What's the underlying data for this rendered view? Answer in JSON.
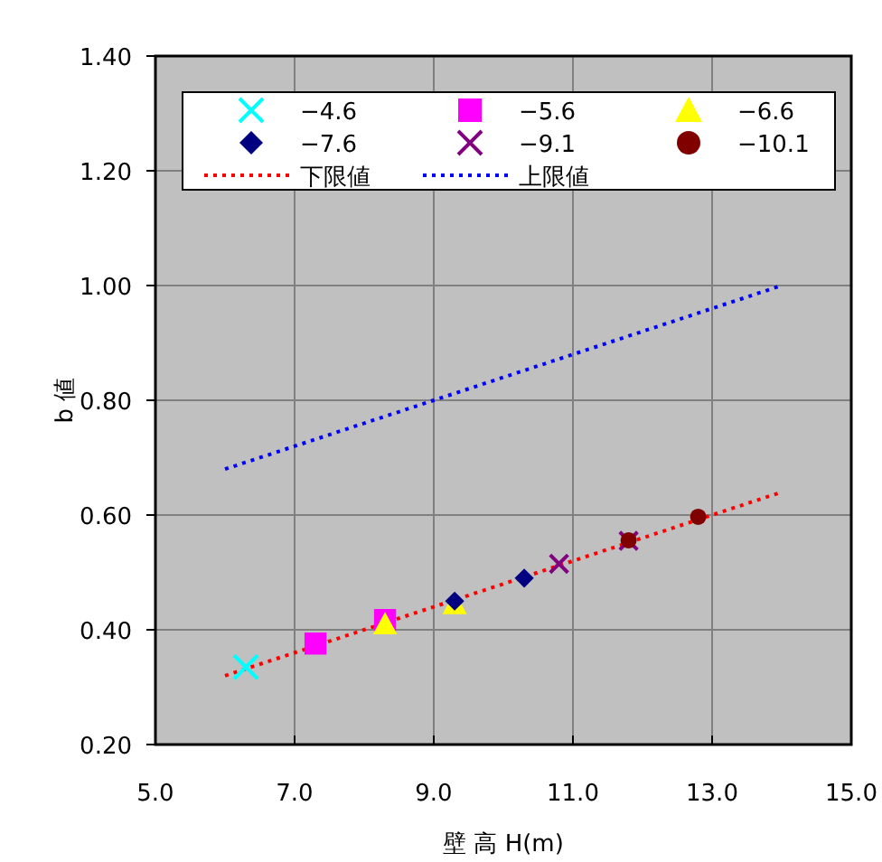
{
  "chart_data": {
    "type": "scatter",
    "xlabel": "壁 高 H(m)",
    "ylabel": "b 値",
    "xlim": [
      5,
      15
    ],
    "ylim": [
      0.2,
      1.4
    ],
    "xticks": [
      {
        "value": 5,
        "label": "5.0"
      },
      {
        "value": 7,
        "label": "7.0"
      },
      {
        "value": 9,
        "label": "9.0"
      },
      {
        "value": 11,
        "label": "11.0"
      },
      {
        "value": 13,
        "label": "13.0"
      },
      {
        "value": 15,
        "label": "15.0"
      }
    ],
    "yticks": [
      {
        "value": 0.2,
        "label": "0.20"
      },
      {
        "value": 0.4,
        "label": "0.40"
      },
      {
        "value": 0.6,
        "label": "0.60"
      },
      {
        "value": 0.8,
        "label": "0.80"
      },
      {
        "value": 1.0,
        "label": "1.00"
      },
      {
        "value": 1.2,
        "label": "1.20"
      },
      {
        "value": 1.4,
        "label": "1.40"
      }
    ],
    "grid": true,
    "legend": "top",
    "series": [
      {
        "name": "−4.6",
        "marker": "cross",
        "color": "#00ffff",
        "x": [
          6.3
        ],
        "values": [
          0.335
        ]
      },
      {
        "name": "−5.6",
        "marker": "square",
        "color": "#ff00ff",
        "x": [
          7.3,
          8.3
        ],
        "values": [
          0.376,
          0.417
        ]
      },
      {
        "name": "−6.6",
        "marker": "triangle",
        "color": "#ffff00",
        "x": [
          8.3,
          9.3
        ],
        "values": [
          0.41,
          0.445
        ]
      },
      {
        "name": "−7.6",
        "marker": "diamond",
        "color": "#000080",
        "x": [
          9.3,
          10.3
        ],
        "values": [
          0.45,
          0.49
        ]
      },
      {
        "name": "−9.1",
        "marker": "cross",
        "color": "#800080",
        "x": [
          10.8,
          11.8
        ],
        "values": [
          0.515,
          0.555
        ]
      },
      {
        "name": "−10.1",
        "marker": "circle",
        "color": "#800000",
        "x": [
          11.8,
          12.8
        ],
        "values": [
          0.556,
          0.597
        ]
      },
      {
        "name": "下限値",
        "type": "line",
        "line_style": "dotted",
        "color": "#ff0000",
        "x": [
          6,
          14
        ],
        "values": [
          0.32,
          0.64
        ]
      },
      {
        "name": "上限値",
        "type": "line",
        "line_style": "dotted",
        "color": "#0000ff",
        "x": [
          6,
          14
        ],
        "values": [
          0.68,
          1.0
        ]
      }
    ]
  }
}
